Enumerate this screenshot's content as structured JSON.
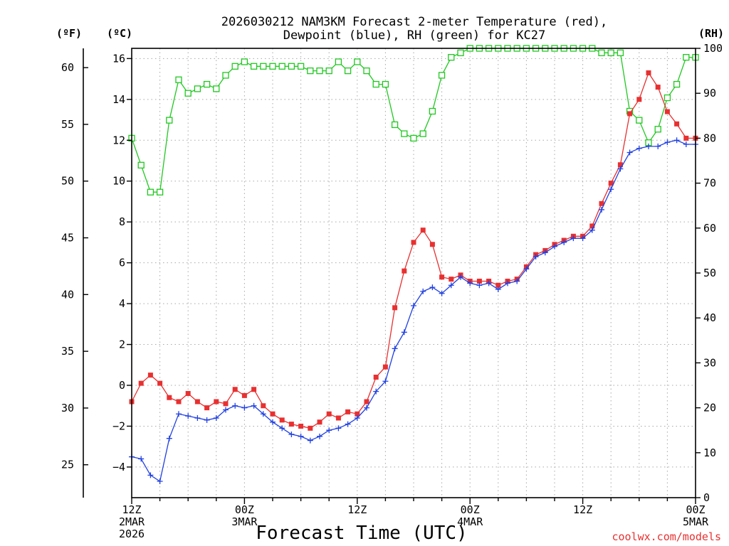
{
  "chart_data": {
    "type": "line",
    "title": "2026030212 NAM3KM Forecast 2-meter Temperature (red),",
    "subtitle": "Dewpoint (blue), RH (green) for KC27",
    "xlabel": "Forecast Time (UTC)",
    "units": {
      "fahrenheit": "(ºF)",
      "celsius": "(ºC)",
      "rh": "(RH)"
    },
    "xlim": [
      0,
      60
    ],
    "ylim_c": [
      -5.5,
      16.5
    ],
    "ylim_rh": [
      0,
      100
    ],
    "c_ticks": [
      -4,
      -2,
      0,
      2,
      4,
      6,
      8,
      10,
      12,
      14,
      16
    ],
    "c_tick_labels": [
      "−4",
      "−2",
      "0",
      "2",
      "4",
      "6",
      "8",
      "10",
      "12",
      "14",
      "16"
    ],
    "f_ticks": [
      25,
      30,
      35,
      40,
      45,
      50,
      55,
      60
    ],
    "f_tick_labels": [
      "25",
      "30",
      "35",
      "40",
      "45",
      "50",
      "55",
      "60"
    ],
    "rh_ticks": [
      0,
      10,
      20,
      30,
      40,
      50,
      60,
      70,
      80,
      90,
      100
    ],
    "rh_tick_labels": [
      "0",
      "10",
      "20",
      "30",
      "40",
      "50",
      "60",
      "70",
      "80",
      "90",
      "100"
    ],
    "x_ticks": [
      {
        "hour": 0,
        "lines": [
          "12Z",
          "2MAR",
          "2026"
        ]
      },
      {
        "hour": 12,
        "lines": [
          "00Z",
          "3MAR"
        ]
      },
      {
        "hour": 24,
        "lines": [
          "12Z"
        ]
      },
      {
        "hour": 36,
        "lines": [
          "00Z",
          "4MAR"
        ]
      },
      {
        "hour": 48,
        "lines": [
          "12Z"
        ]
      },
      {
        "hour": 60,
        "lines": [
          "00Z",
          "5MAR"
        ]
      }
    ],
    "hours": [
      0,
      1,
      2,
      3,
      4,
      5,
      6,
      7,
      8,
      9,
      10,
      11,
      12,
      13,
      14,
      15,
      16,
      17,
      18,
      19,
      20,
      21,
      22,
      23,
      24,
      25,
      26,
      27,
      28,
      29,
      30,
      31,
      32,
      33,
      34,
      35,
      36,
      37,
      38,
      39,
      40,
      41,
      42,
      43,
      44,
      45,
      46,
      47,
      48,
      49,
      50,
      51,
      52,
      53,
      54,
      55,
      56,
      57,
      58,
      59,
      60
    ],
    "series": [
      {
        "name": "2-meter Temperature",
        "color": "#e83030",
        "marker": "filled-square",
        "axis": "celsius",
        "values": [
          -0.8,
          0.1,
          0.5,
          0.1,
          -0.6,
          -0.8,
          -0.4,
          -0.8,
          -1.1,
          -0.8,
          -0.9,
          -0.2,
          -0.5,
          -0.2,
          -1.0,
          -1.4,
          -1.7,
          -1.9,
          -2.0,
          -2.1,
          -1.8,
          -1.4,
          -1.6,
          -1.3,
          -1.4,
          -0.8,
          0.4,
          0.9,
          3.8,
          5.6,
          7.0,
          7.6,
          6.9,
          5.3,
          5.2,
          5.4,
          5.1,
          5.1,
          5.1,
          4.9,
          5.1,
          5.2,
          5.8,
          6.4,
          6.6,
          6.9,
          7.1,
          7.3,
          7.3,
          7.8,
          8.9,
          9.9,
          10.8,
          13.3,
          14.0,
          15.3,
          14.6,
          13.4,
          12.8,
          12.1,
          12.1
        ]
      },
      {
        "name": "Dewpoint",
        "color": "#2040e0",
        "marker": "plus",
        "axis": "celsius",
        "values": [
          -3.5,
          -3.6,
          -4.4,
          -4.7,
          -2.6,
          -1.4,
          -1.5,
          -1.6,
          -1.7,
          -1.6,
          -1.2,
          -1.0,
          -1.1,
          -1.0,
          -1.4,
          -1.8,
          -2.1,
          -2.4,
          -2.5,
          -2.7,
          -2.5,
          -2.2,
          -2.1,
          -1.9,
          -1.6,
          -1.1,
          -0.3,
          0.2,
          1.8,
          2.6,
          3.9,
          4.6,
          4.8,
          4.5,
          4.9,
          5.3,
          5.0,
          4.9,
          5.0,
          4.7,
          5.0,
          5.1,
          5.7,
          6.3,
          6.5,
          6.8,
          7.0,
          7.2,
          7.2,
          7.6,
          8.6,
          9.6,
          10.6,
          11.4,
          11.6,
          11.7,
          11.7,
          11.9,
          12.0,
          11.8,
          11.8
        ]
      },
      {
        "name": "Relative Humidity",
        "color": "#20c820",
        "marker": "open-square",
        "axis": "rh",
        "values": [
          80,
          74,
          68,
          68,
          84,
          93,
          90,
          91,
          92,
          91,
          94,
          96,
          97,
          96,
          96,
          96,
          96,
          96,
          96,
          95,
          95,
          95,
          97,
          95,
          97,
          95,
          92,
          92,
          83,
          81,
          80,
          81,
          86,
          94,
          98,
          99,
          100,
          100,
          100,
          100,
          100,
          100,
          100,
          100,
          100,
          100,
          100,
          100,
          100,
          100,
          99,
          99,
          99,
          86,
          84,
          79,
          82,
          89,
          92,
          98,
          98
        ]
      }
    ],
    "watermark": "coolwx.com/models",
    "grid": true
  }
}
